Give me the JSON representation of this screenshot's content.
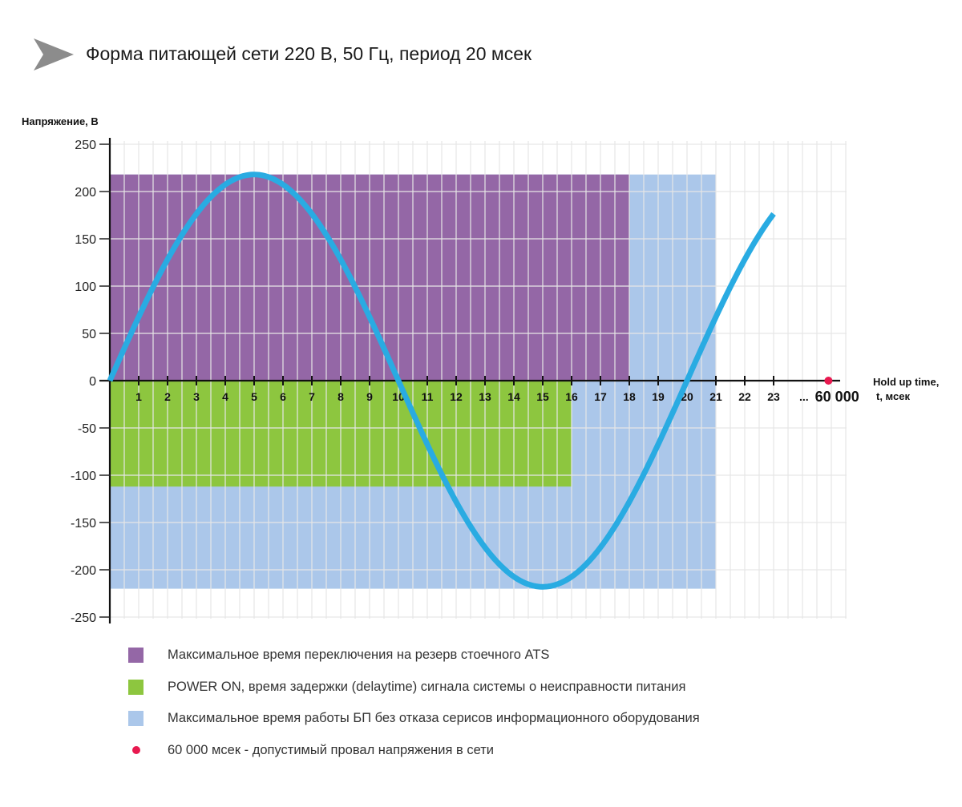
{
  "title": "Форма питающей сети 220 В, 50 Гц, период 20 мсек",
  "chart_data": {
    "type": "line",
    "ylabel": "Напряжение, В",
    "xlabel_line1": "Hold up time,",
    "xlabel_line2": "t, мсек",
    "ylim": [
      -250,
      250
    ],
    "yticks": [
      250,
      200,
      150,
      100,
      50,
      0,
      -50,
      -100,
      -150,
      -200,
      -250
    ],
    "xticks": [
      "1",
      "2",
      "3",
      "4",
      "5",
      "6",
      "7",
      "8",
      "9",
      "10",
      "11",
      "12",
      "13",
      "14",
      "15",
      "16",
      "17",
      "18",
      "19",
      "20",
      "21",
      "22",
      "23"
    ],
    "xtick_ellipsis": "...",
    "xtick_final": "60 000",
    "grid": true,
    "series": [
      {
        "amplitude": 218,
        "period_ms": 20,
        "x_start": 0,
        "x_end": 23,
        "color": "#29abe2"
      }
    ],
    "regions": [
      {
        "color": "#ab c7ea",
        "x": [
          0,
          21
        ],
        "y": [
          -220,
          218
        ]
      },
      {
        "color": "#9467a6",
        "x": [
          0,
          18
        ],
        "y": [
          0,
          218
        ]
      },
      {
        "color": "#8dc63f",
        "x": [
          0,
          16
        ],
        "y": [
          -112,
          0
        ]
      }
    ],
    "marker": {
      "x": 24.9,
      "y": 0,
      "color": "#e8194f"
    },
    "legend": [
      {
        "color": "#9467a6",
        "shape": "square",
        "label": "Максимальное время переключения на резерв стоечного ATS"
      },
      {
        "color": "#8dc63f",
        "shape": "square",
        "label": "POWER ON, время задержки (delaytime) сигнала системы о неисправности питания"
      },
      {
        "color": "#abc7ea",
        "shape": "square",
        "label": "Максимальное время работы БП без отказа серисов информационного оборудования"
      },
      {
        "color": "#e8194f",
        "shape": "dot",
        "label": "60 000 мсек - допустимый провал напряжения в сети"
      }
    ]
  }
}
